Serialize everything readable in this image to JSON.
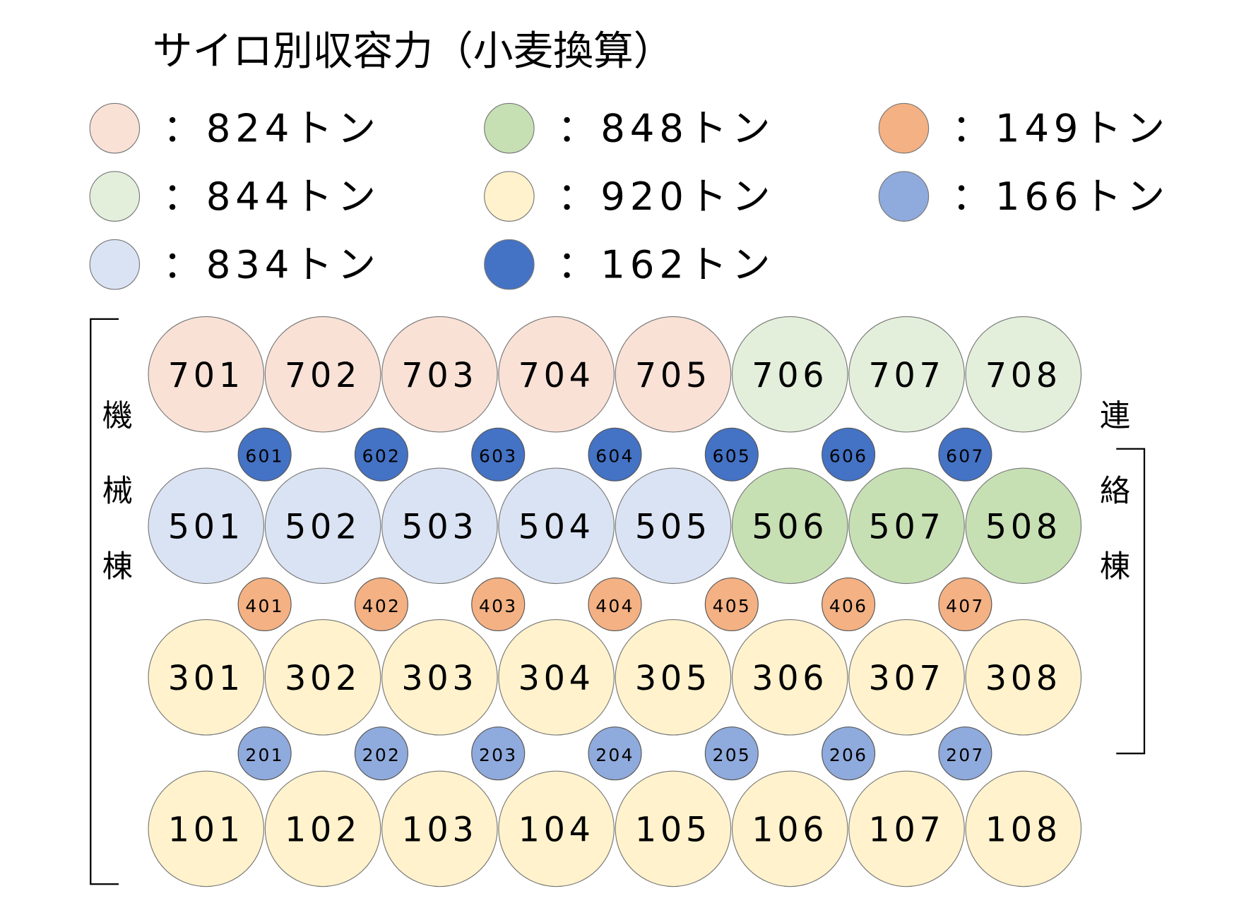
{
  "title": "サイロ別収容力（小麦換算）",
  "legend": [
    {
      "color": "#f9e1d6",
      "label": "：824トン"
    },
    {
      "color": "#e3efdb",
      "label": "：844トン"
    },
    {
      "color": "#dae3f3",
      "label": "：834トン"
    },
    {
      "color": "#c6e0b4",
      "label": "：848トン"
    },
    {
      "color": "#fff2cc",
      "label": "：920トン"
    },
    {
      "color": "#4472c4",
      "label": "：162トン"
    },
    {
      "color": "#f4b183",
      "label": "：149トン"
    },
    {
      "color": "#8faadc",
      "label": "：166トン"
    }
  ],
  "left_building": "機械棟",
  "right_building": "連絡棟",
  "rows": [
    {
      "size": "large",
      "silos": [
        {
          "label": "701",
          "color": "#f9e1d6"
        },
        {
          "label": "702",
          "color": "#f9e1d6"
        },
        {
          "label": "703",
          "color": "#f9e1d6"
        },
        {
          "label": "704",
          "color": "#f9e1d6"
        },
        {
          "label": "705",
          "color": "#f9e1d6"
        },
        {
          "label": "706",
          "color": "#e3efdb"
        },
        {
          "label": "707",
          "color": "#e3efdb"
        },
        {
          "label": "708",
          "color": "#e3efdb"
        }
      ]
    },
    {
      "size": "small",
      "silos": [
        {
          "label": "601",
          "color": "#4472c4"
        },
        {
          "label": "602",
          "color": "#4472c4"
        },
        {
          "label": "603",
          "color": "#4472c4"
        },
        {
          "label": "604",
          "color": "#4472c4"
        },
        {
          "label": "605",
          "color": "#4472c4"
        },
        {
          "label": "606",
          "color": "#4472c4"
        },
        {
          "label": "607",
          "color": "#4472c4"
        }
      ]
    },
    {
      "size": "large",
      "silos": [
        {
          "label": "501",
          "color": "#dae3f3"
        },
        {
          "label": "502",
          "color": "#dae3f3"
        },
        {
          "label": "503",
          "color": "#dae3f3"
        },
        {
          "label": "504",
          "color": "#dae3f3"
        },
        {
          "label": "505",
          "color": "#dae3f3"
        },
        {
          "label": "506",
          "color": "#c6e0b4"
        },
        {
          "label": "507",
          "color": "#c6e0b4"
        },
        {
          "label": "508",
          "color": "#c6e0b4"
        }
      ]
    },
    {
      "size": "small",
      "silos": [
        {
          "label": "401",
          "color": "#f4b183"
        },
        {
          "label": "402",
          "color": "#f4b183"
        },
        {
          "label": "403",
          "color": "#f4b183"
        },
        {
          "label": "404",
          "color": "#f4b183"
        },
        {
          "label": "405",
          "color": "#f4b183"
        },
        {
          "label": "406",
          "color": "#f4b183"
        },
        {
          "label": "407",
          "color": "#f4b183"
        }
      ]
    },
    {
      "size": "large",
      "silos": [
        {
          "label": "301",
          "color": "#fff2cc"
        },
        {
          "label": "302",
          "color": "#fff2cc"
        },
        {
          "label": "303",
          "color": "#fff2cc"
        },
        {
          "label": "304",
          "color": "#fff2cc"
        },
        {
          "label": "305",
          "color": "#fff2cc"
        },
        {
          "label": "306",
          "color": "#fff2cc"
        },
        {
          "label": "307",
          "color": "#fff2cc"
        },
        {
          "label": "308",
          "color": "#fff2cc"
        }
      ]
    },
    {
      "size": "small",
      "silos": [
        {
          "label": "201",
          "color": "#8faadc"
        },
        {
          "label": "202",
          "color": "#8faadc"
        },
        {
          "label": "203",
          "color": "#8faadc"
        },
        {
          "label": "204",
          "color": "#8faadc"
        },
        {
          "label": "205",
          "color": "#8faadc"
        },
        {
          "label": "206",
          "color": "#8faadc"
        },
        {
          "label": "207",
          "color": "#8faadc"
        }
      ]
    },
    {
      "size": "large",
      "silos": [
        {
          "label": "101",
          "color": "#fff2cc"
        },
        {
          "label": "102",
          "color": "#fff2cc"
        },
        {
          "label": "103",
          "color": "#fff2cc"
        },
        {
          "label": "104",
          "color": "#fff2cc"
        },
        {
          "label": "105",
          "color": "#fff2cc"
        },
        {
          "label": "106",
          "color": "#fff2cc"
        },
        {
          "label": "107",
          "color": "#fff2cc"
        },
        {
          "label": "108",
          "color": "#fff2cc"
        }
      ]
    }
  ]
}
